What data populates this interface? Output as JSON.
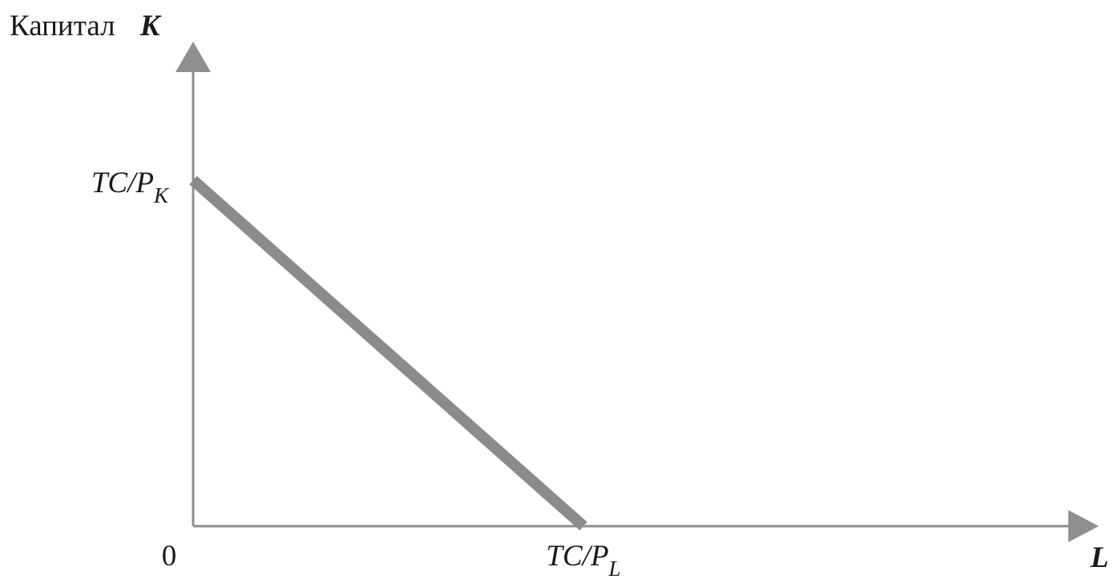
{
  "chart_data": {
    "type": "line",
    "title": "",
    "y_axis": {
      "label_text": "Капитал",
      "label_symbol": "K",
      "tick_label": {
        "main": "TC/P",
        "subscript": "K"
      }
    },
    "x_axis": {
      "label_symbol": "L",
      "tick_label": {
        "main": "TC/P",
        "subscript": "L"
      }
    },
    "origin_label": "0",
    "xlim": [
      0,
      2.6
    ],
    "ylim": [
      0,
      1.45
    ],
    "series": [
      {
        "x": [
          0,
          1
        ],
        "y": [
          1,
          0
        ]
      }
    ],
    "grid": false,
    "legend": false
  }
}
